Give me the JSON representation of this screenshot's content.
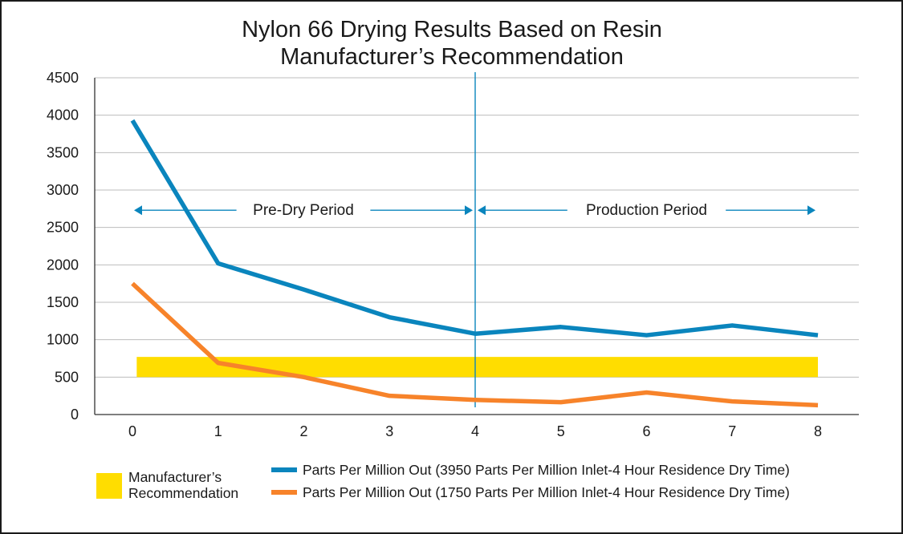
{
  "chart_data": {
    "type": "line",
    "title_lines": [
      "Nylon 66 Drying Results Based on Resin",
      "Manufacturer’s Recommendation"
    ],
    "x": [
      0,
      1,
      2,
      3,
      4,
      5,
      6,
      7,
      8
    ],
    "xlim": [
      0,
      8
    ],
    "ylim": [
      0,
      4500
    ],
    "yticks": [
      0,
      500,
      1000,
      1500,
      2000,
      2500,
      3000,
      3500,
      4000,
      4500
    ],
    "grid": true,
    "series": [
      {
        "name": "Parts Per Million Out (3950 Parts Per Million Inlet-4 Hour Residence Dry Time)",
        "color": "#0a85bd",
        "values": [
          3930,
          2020,
          1670,
          1300,
          1080,
          1170,
          1060,
          1190,
          1060
        ]
      },
      {
        "name": "Parts Per Million Out (1750 Parts Per Million Inlet-4 Hour Residence Dry Time)",
        "color": "#f7832a",
        "values": [
          1750,
          690,
          500,
          250,
          195,
          165,
          295,
          175,
          125
        ]
      }
    ],
    "band": {
      "name_lines": [
        "Manufacturer’s",
        "Recommendation"
      ],
      "color": "#ffdd00",
      "y_range": [
        500,
        770
      ],
      "x_range": [
        0.05,
        8
      ]
    },
    "divider": {
      "x": 4,
      "color": "#0a85bd"
    },
    "periods": [
      {
        "label": "Pre-Dry Period",
        "x_range": [
          0,
          4
        ],
        "y": 2730
      },
      {
        "label": "Production Period",
        "x_range": [
          4,
          8
        ],
        "y": 2730
      }
    ],
    "legend_position": "bottom"
  }
}
